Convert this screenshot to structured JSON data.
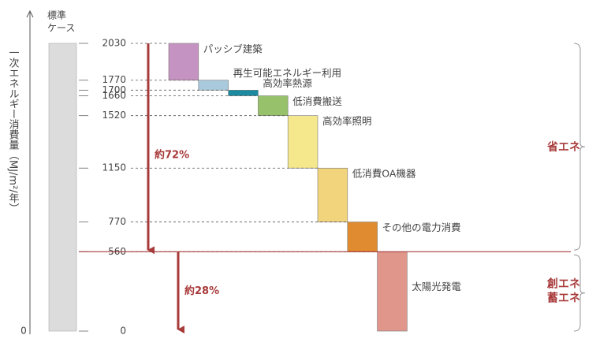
{
  "chart_data": {
    "type": "waterfall",
    "ylabel": "一次エネルギー消費量（MJ/m²/年）",
    "start_label": [
      "標準",
      "ケース"
    ],
    "start": 2030,
    "start_color": "#dcdcdc",
    "categories": [
      "パッシブ建築",
      "再生可能エネルギー利用",
      "高効率熱源",
      "低消費搬送",
      "高効率照明",
      "低消費OA機器",
      "その他の電力消費",
      "太陽光発電"
    ],
    "values": [
      -260,
      -70,
      -40,
      -140,
      -370,
      -380,
      -210,
      -560
    ],
    "colors": [
      "#c593c2",
      "#a9c9dc",
      "#1b8ba2",
      "#97c26b",
      "#f5e88c",
      "#f2d47c",
      "#e08b2f",
      "#e0968b"
    ],
    "ylim": [
      0,
      2030
    ],
    "yticks": [
      0,
      560,
      770,
      1150,
      1520,
      1660,
      1700,
      1770,
      2030
    ],
    "y_axis_origin": 0,
    "annotations": [
      "約72%",
      "約28%"
    ],
    "brackets": [
      [
        "省エネ"
      ],
      [
        "創エネ",
        "蓄エネ"
      ]
    ]
  }
}
